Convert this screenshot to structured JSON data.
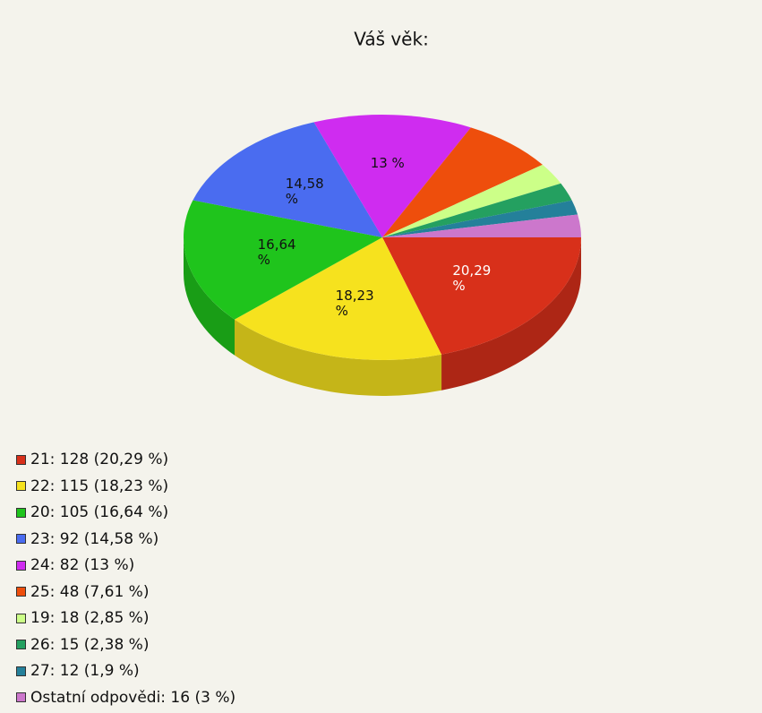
{
  "chart_data": {
    "type": "pie3d",
    "title": "Váš věk:",
    "categories": [
      "21: 128 (20,29 %)",
      "22: 115 (18,23 %)",
      "20: 105 (16,64 %)",
      "23: 92 (14,58 %)",
      "24: 82 (13 %)",
      "25: 48 (7,61 %)",
      "19: 18 (2,85 %)",
      "26: 15 (2,38 %)",
      "27: 12 (1,9 %)",
      "Ostatní odpovědi: 16 (3 %)"
    ],
    "values": [
      20.29,
      18.23,
      16.64,
      14.58,
      13,
      7.61,
      2.85,
      2.38,
      1.9,
      3
    ],
    "value_labels": [
      "20,29 %",
      "18,23 %",
      "16,64 %",
      "14,58 %",
      "13 %",
      null,
      null,
      null,
      null,
      null
    ],
    "colors": [
      "#d8301a",
      "#f6e21e",
      "#1fc41c",
      "#4a6cf0",
      "#cf2cf0",
      "#ee4e0c",
      "#ccff88",
      "#24a060",
      "#24809a",
      "#cc77cc"
    ]
  }
}
